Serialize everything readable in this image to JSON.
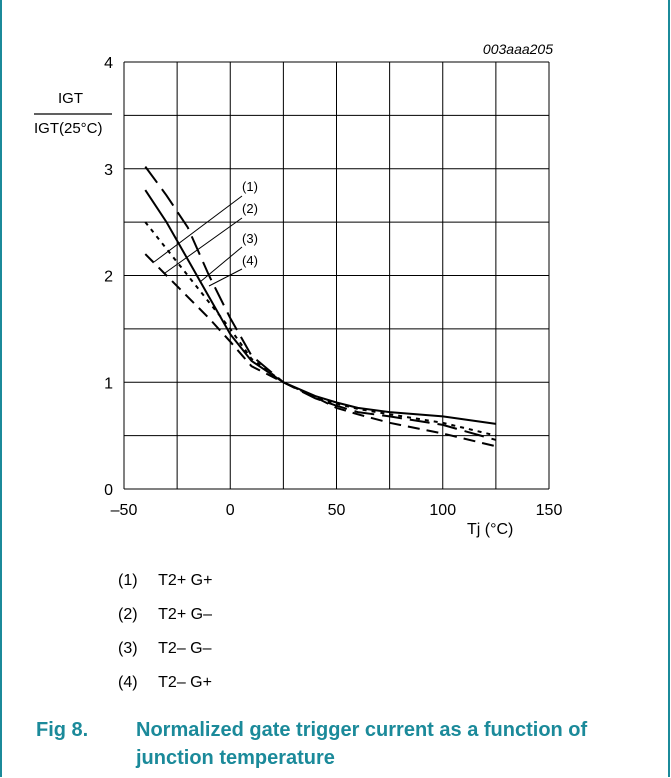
{
  "chart_data": {
    "type": "line",
    "code": "003aaa205",
    "ylabel_num": "IGT",
    "ylabel_den": "IGT(25°C)",
    "xlabel": "Tj (°C)",
    "xlim": [
      -50,
      150
    ],
    "ylim": [
      0,
      4
    ],
    "xticks": [
      -50,
      0,
      50,
      100,
      150
    ],
    "xtick_labels": [
      "–50",
      "0",
      "50",
      "100",
      "150"
    ],
    "yticks": [
      0,
      1,
      2,
      3,
      4
    ],
    "grid": true,
    "series": [
      {
        "name": "(1)",
        "dash": "solid",
        "x": [
          -40,
          -30,
          -20,
          -10,
          0,
          10,
          25,
          40,
          50,
          60,
          75,
          100,
          125
        ],
        "y": [
          2.8,
          2.5,
          2.15,
          1.8,
          1.45,
          1.2,
          1.0,
          0.87,
          0.81,
          0.76,
          0.72,
          0.68,
          0.61
        ]
      },
      {
        "name": "(2)",
        "dash": "short",
        "x": [
          -40,
          -30,
          -20,
          -10,
          0,
          10,
          25,
          40,
          50,
          60,
          75,
          100,
          125
        ],
        "y": [
          2.5,
          2.25,
          2.0,
          1.75,
          1.5,
          1.22,
          1.0,
          0.86,
          0.8,
          0.75,
          0.7,
          0.62,
          0.5
        ]
      },
      {
        "name": "(3)",
        "dash": "long",
        "x": [
          -40,
          -30,
          -20,
          -10,
          0,
          10,
          25,
          40,
          50,
          60,
          75,
          100,
          125
        ],
        "y": [
          3.02,
          2.75,
          2.45,
          2.0,
          1.6,
          1.25,
          1.0,
          0.85,
          0.78,
          0.72,
          0.68,
          0.6,
          0.46
        ]
      },
      {
        "name": "(4)",
        "dash": "medium",
        "x": [
          -40,
          -30,
          -20,
          -10,
          0,
          10,
          25,
          40,
          50,
          60,
          75,
          100,
          125
        ],
        "y": [
          2.2,
          2.0,
          1.8,
          1.6,
          1.38,
          1.15,
          1.0,
          0.86,
          0.76,
          0.7,
          0.62,
          0.52,
          0.4
        ]
      }
    ]
  },
  "legend": [
    {
      "num": "(1)",
      "label": "T2+ G+"
    },
    {
      "num": "(2)",
      "label": "T2+ G–"
    },
    {
      "num": "(3)",
      "label": "T2– G–"
    },
    {
      "num": "(4)",
      "label": "T2– G+"
    }
  ],
  "caption": {
    "fig": "Fig 8.",
    "title": "Normalized gate trigger current as a function of junction temperature"
  },
  "colors": {
    "accent": "#1b8a9a"
  }
}
